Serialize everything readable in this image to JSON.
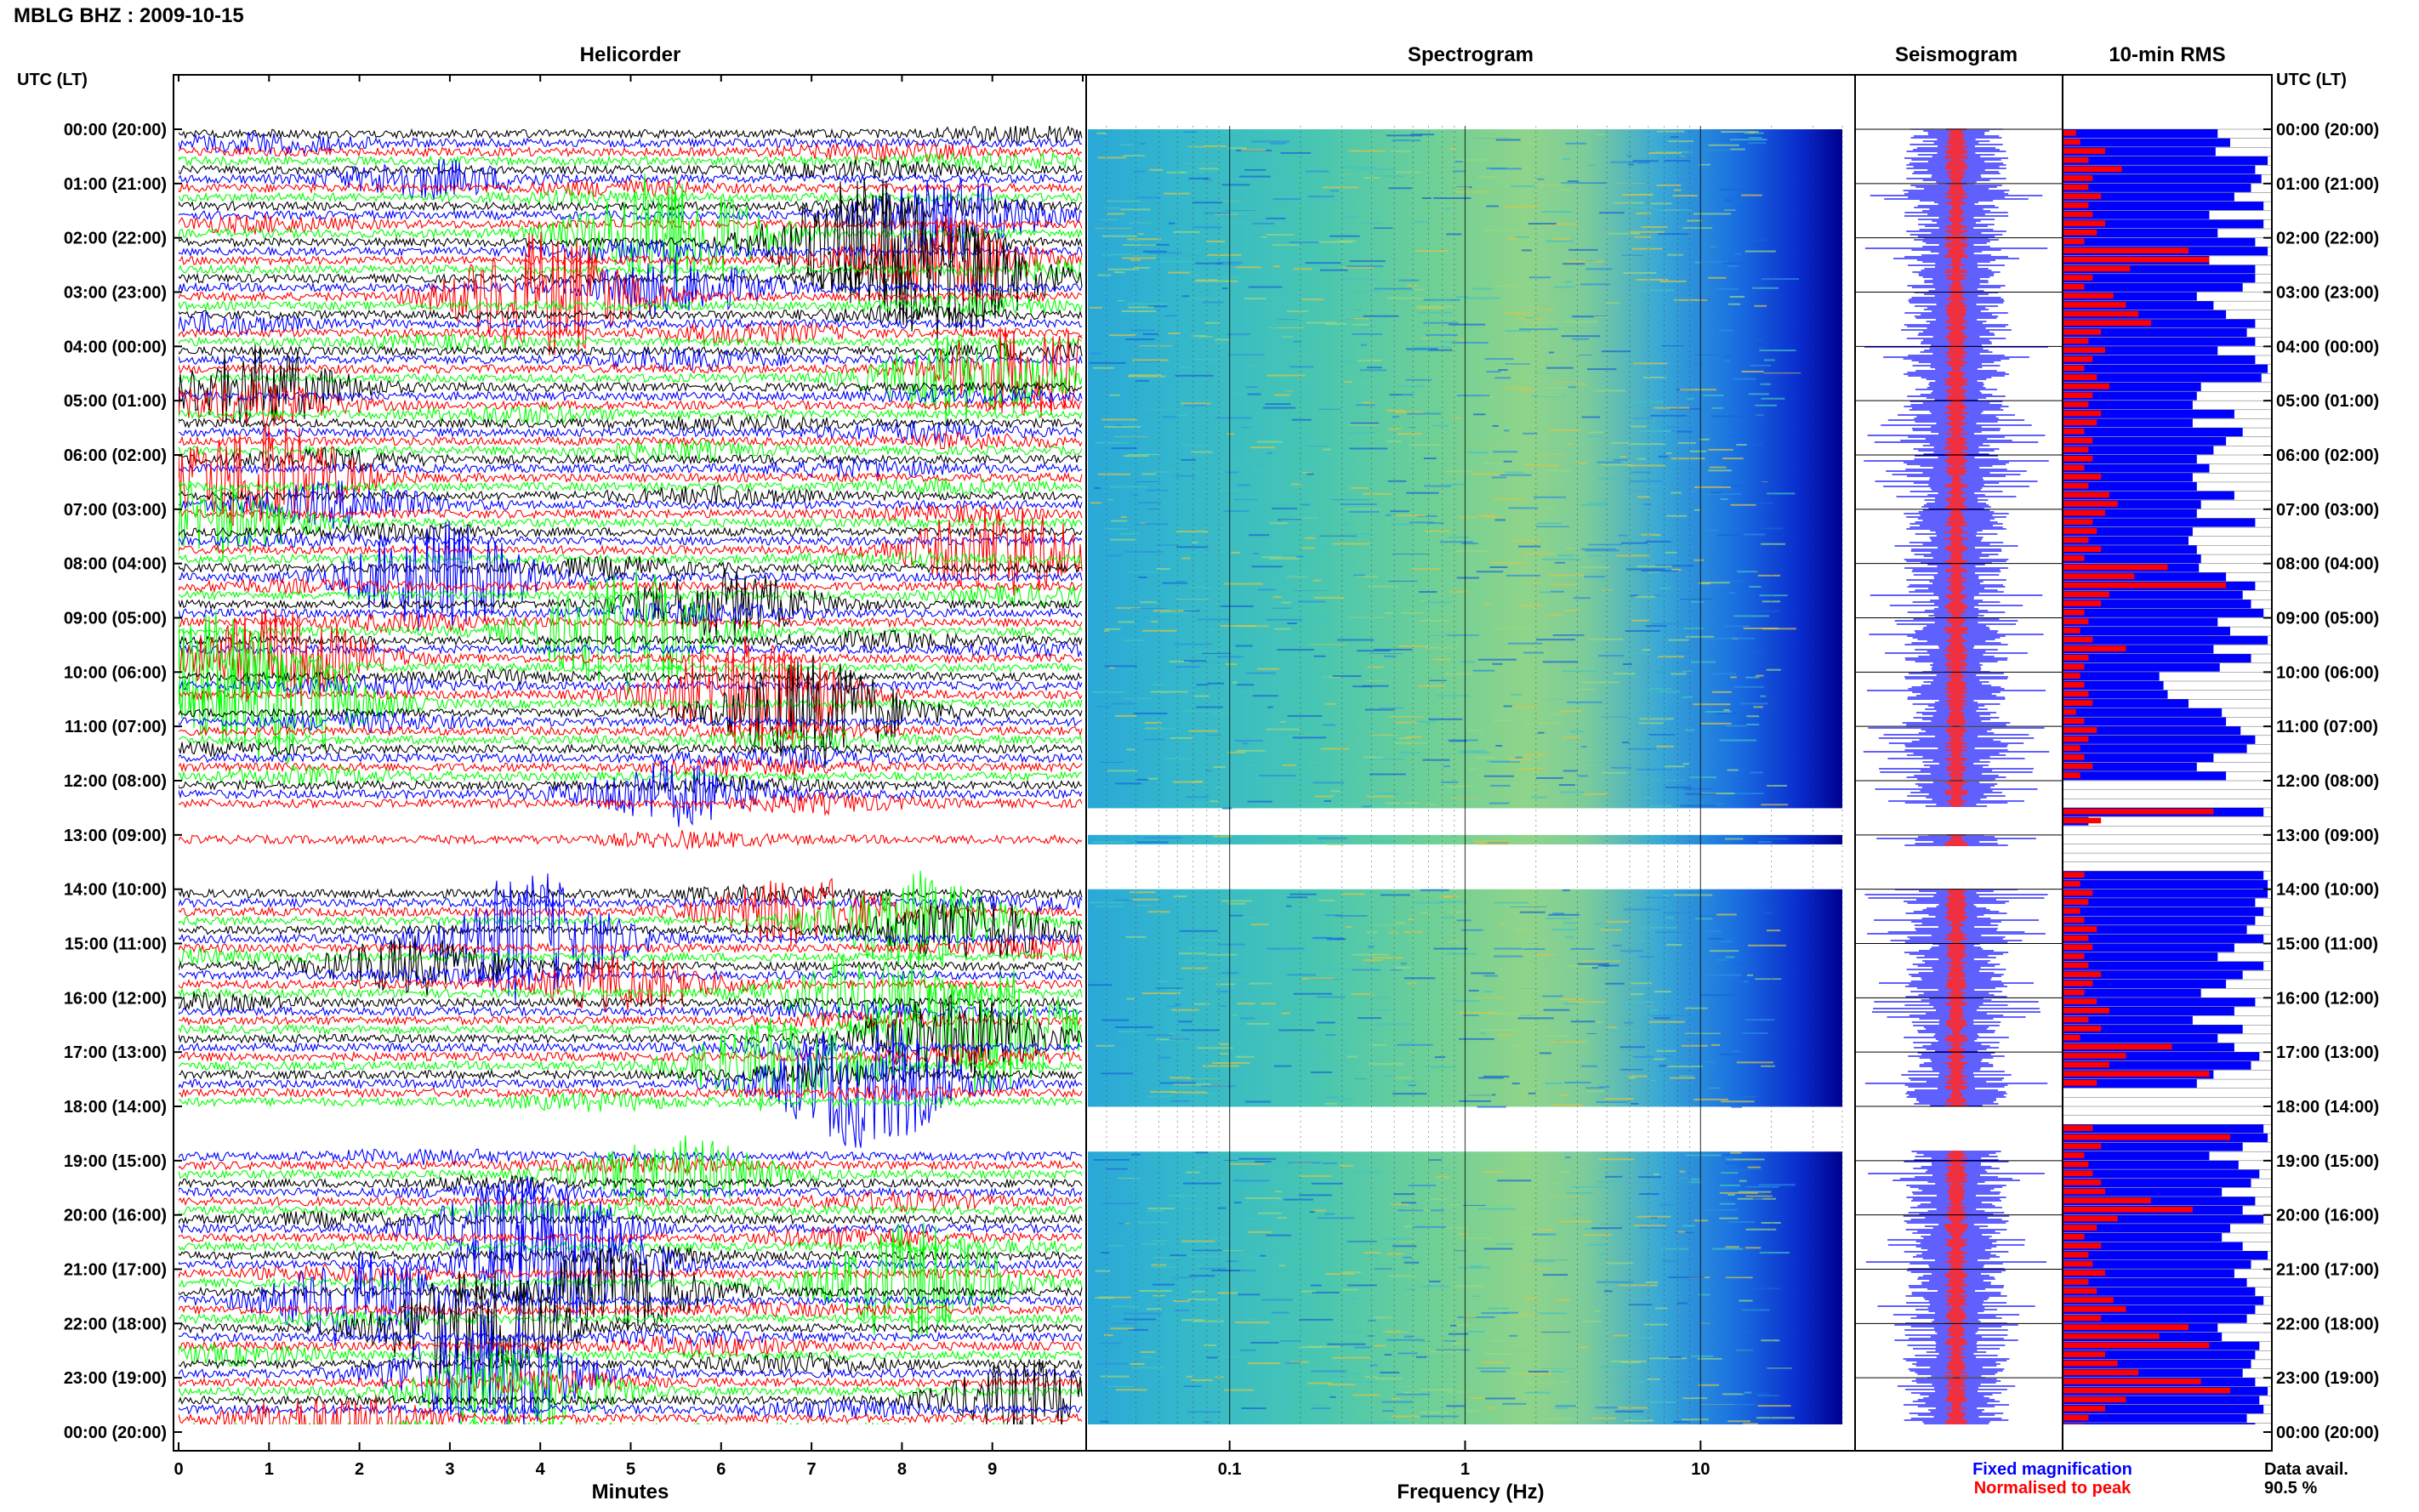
{
  "chart_data": [
    {
      "type": "heatmap",
      "panel": "helicorder",
      "title": "Helicorder",
      "xlabel": "Minutes",
      "x_ticks": [
        "0",
        "1",
        "2",
        "3",
        "4",
        "5",
        "6",
        "7",
        "8",
        "9"
      ],
      "x_range": [
        0,
        10
      ],
      "y_label": "UTC (LT)",
      "y_ticks": [
        "00:00 (20:00)",
        "01:00 (21:00)",
        "02:00 (22:00)",
        "03:00 (23:00)",
        "04:00 (00:00)",
        "05:00 (01:00)",
        "06:00 (02:00)",
        "07:00 (03:00)",
        "08:00 (04:00)",
        "09:00 (05:00)",
        "10:00 (06:00)",
        "11:00 (07:00)",
        "12:00 (08:00)",
        "13:00 (09:00)",
        "14:00 (10:00)",
        "15:00 (11:00)",
        "16:00 (12:00)",
        "17:00 (13:00)",
        "18:00 (14:00)",
        "19:00 (15:00)",
        "20:00 (16:00)",
        "21:00 (17:00)",
        "22:00 (18:00)",
        "23:00 (19:00)",
        "00:00 (20:00)"
      ],
      "trace_colors": [
        "#000000",
        "#0000ff",
        "#ff0000",
        "#00ff00"
      ],
      "traces_per_hour": 6,
      "data_gaps_utc_hours": [
        [
          12.5,
          13.0
        ],
        [
          13.2,
          14.0
        ],
        [
          18.0,
          18.8
        ]
      ]
    },
    {
      "type": "heatmap",
      "panel": "spectrogram",
      "title": "Spectrogram",
      "xlabel": "Frequency (Hz)",
      "x_scale": "log",
      "x_range": [
        0.025,
        40
      ],
      "x_ticks": [
        "0.1",
        "1",
        "10"
      ],
      "colormap": "jet"
    },
    {
      "type": "line",
      "panel": "seismogram",
      "title": "Seismogram",
      "series": [
        {
          "name": "Fixed magnification",
          "color": "#0000ff"
        },
        {
          "name": "Normalised to peak",
          "color": "#ff0000"
        }
      ]
    },
    {
      "type": "bar",
      "panel": "rms",
      "title": "10-min RMS",
      "orientation": "horizontal",
      "y_label": "UTC (LT)",
      "y_ticks": [
        "00:00 (20:00)",
        "01:00 (21:00)",
        "02:00 (22:00)",
        "03:00 (23:00)",
        "04:00 (00:00)",
        "05:00 (01:00)",
        "06:00 (02:00)",
        "07:00 (03:00)",
        "08:00 (04:00)",
        "09:00 (05:00)",
        "10:00 (06:00)",
        "11:00 (07:00)",
        "12:00 (08:00)",
        "13:00 (09:00)",
        "14:00 (10:00)",
        "15:00 (11:00)",
        "16:00 (12:00)",
        "17:00 (13:00)",
        "18:00 (14:00)",
        "19:00 (15:00)",
        "20:00 (16:00)",
        "21:00 (17:00)",
        "22:00 (18:00)",
        "23:00 (19:00)",
        "00:00 (20:00)"
      ],
      "series": [
        {
          "name": "Fixed magnification",
          "color": "#0000ff",
          "values": [
            0.74,
            0.8,
            0.73,
            0.98,
            0.92,
            0.95,
            0.9,
            0.82,
            0.96,
            0.7,
            0.96,
            0.74,
            0.92,
            0.98,
            0.7,
            0.92,
            0.92,
            0.86,
            0.64,
            0.72,
            0.78,
            0.92,
            0.88,
            0.92,
            0.74,
            0.92,
            0.98,
            0.95,
            0.66,
            0.64,
            0.62,
            0.82,
            0.62,
            0.86,
            0.78,
            0.72,
            0.64,
            0.7,
            0.62,
            0.64,
            0.82,
            0.66,
            0.64,
            0.92,
            0.62,
            0.6,
            0.64,
            0.66,
            0.65,
            0.78,
            0.92,
            0.86,
            0.9,
            0.96,
            0.74,
            0.8,
            0.98,
            0.72,
            0.9,
            0.75,
            0.46,
            0.48,
            0.5,
            0.6,
            0.76,
            0.78,
            0.85,
            0.92,
            0.88,
            0.72,
            0.64,
            0.78,
            0.0,
            0.0,
            0.0,
            0.96,
            0.12,
            0.0,
            0.0,
            0.0,
            0.0,
            0.0,
            0.96,
            0.98,
            0.98,
            0.92,
            0.96,
            0.92,
            0.88,
            0.96,
            0.82,
            0.74,
            0.96,
            0.86,
            0.78,
            0.66,
            0.92,
            0.82,
            0.62,
            0.86,
            0.74,
            0.82,
            0.94,
            0.9,
            0.72,
            0.64,
            0.0,
            0.0,
            0.0,
            0.0,
            0.96,
            0.98,
            0.86,
            0.7,
            0.84,
            0.94,
            0.9,
            0.76,
            0.92,
            0.86,
            0.96,
            0.8,
            0.76,
            0.86,
            0.98,
            0.9,
            0.82,
            0.88,
            0.92,
            0.96,
            0.92,
            0.88,
            0.74,
            0.76,
            0.94,
            0.92,
            0.9,
            0.86,
            0.92,
            0.98,
            0.94,
            0.96,
            0.88,
            0.92
          ]
        },
        {
          "name": "Normalised to peak",
          "color": "#ff0000",
          "values": [
            0.06,
            0.08,
            0.2,
            0.12,
            0.28,
            0.14,
            0.12,
            0.18,
            0.12,
            0.14,
            0.2,
            0.16,
            0.1,
            0.6,
            0.7,
            0.32,
            0.14,
            0.1,
            0.24,
            0.3,
            0.36,
            0.42,
            0.18,
            0.12,
            0.2,
            0.14,
            0.1,
            0.16,
            0.22,
            0.14,
            0.12,
            0.18,
            0.16,
            0.1,
            0.14,
            0.12,
            0.14,
            0.1,
            0.18,
            0.12,
            0.22,
            0.26,
            0.2,
            0.14,
            0.16,
            0.12,
            0.18,
            0.1,
            0.5,
            0.34,
            0.78,
            0.22,
            0.18,
            0.1,
            0.12,
            0.08,
            0.14,
            0.3,
            0.12,
            0.1,
            0.08,
            0.1,
            0.12,
            0.14,
            0.06,
            0.1,
            0.16,
            0.12,
            0.08,
            0.1,
            0.14,
            0.08,
            0.0,
            0.0,
            0.0,
            0.72,
            0.18,
            0.0,
            0.0,
            0.0,
            0.0,
            0.0,
            0.1,
            0.08,
            0.14,
            0.12,
            0.08,
            0.1,
            0.16,
            0.12,
            0.14,
            0.1,
            0.12,
            0.18,
            0.14,
            0.1,
            0.16,
            0.22,
            0.12,
            0.18,
            0.08,
            0.52,
            0.3,
            0.22,
            0.7,
            0.16,
            0.0,
            0.0,
            0.0,
            0.0,
            0.14,
            0.8,
            0.18,
            0.1,
            0.12,
            0.14,
            0.18,
            0.2,
            0.42,
            0.62,
            0.26,
            0.16,
            0.1,
            0.18,
            0.12,
            0.14,
            0.2,
            0.12,
            0.16,
            0.24,
            0.3,
            0.18,
            0.6,
            0.46,
            0.7,
            0.2,
            0.26,
            0.36,
            0.66,
            0.8,
            0.3,
            0.2,
            0.12,
            0.1
          ]
        }
      ]
    }
  ],
  "header": {
    "title": "MBLG BHZ : 2009-10-15"
  },
  "panels": {
    "helicorder_title": "Helicorder",
    "spectrogram_title": "Spectrogram",
    "seismogram_title": "Seismogram",
    "rms_title": "10-min RMS",
    "left_axis_label": "UTC (LT)",
    "right_axis_label": "UTC (LT)",
    "helicorder_xlabel": "Minutes",
    "spectrogram_xlabel": "Frequency (Hz)"
  },
  "legend": {
    "fixed": "Fixed magnification",
    "fixed_color": "#0000ff",
    "normalised": "Normalised to peak",
    "normalised_color": "#ff0000"
  },
  "availability": {
    "label": "Data avail.",
    "value": "90.5 %"
  }
}
